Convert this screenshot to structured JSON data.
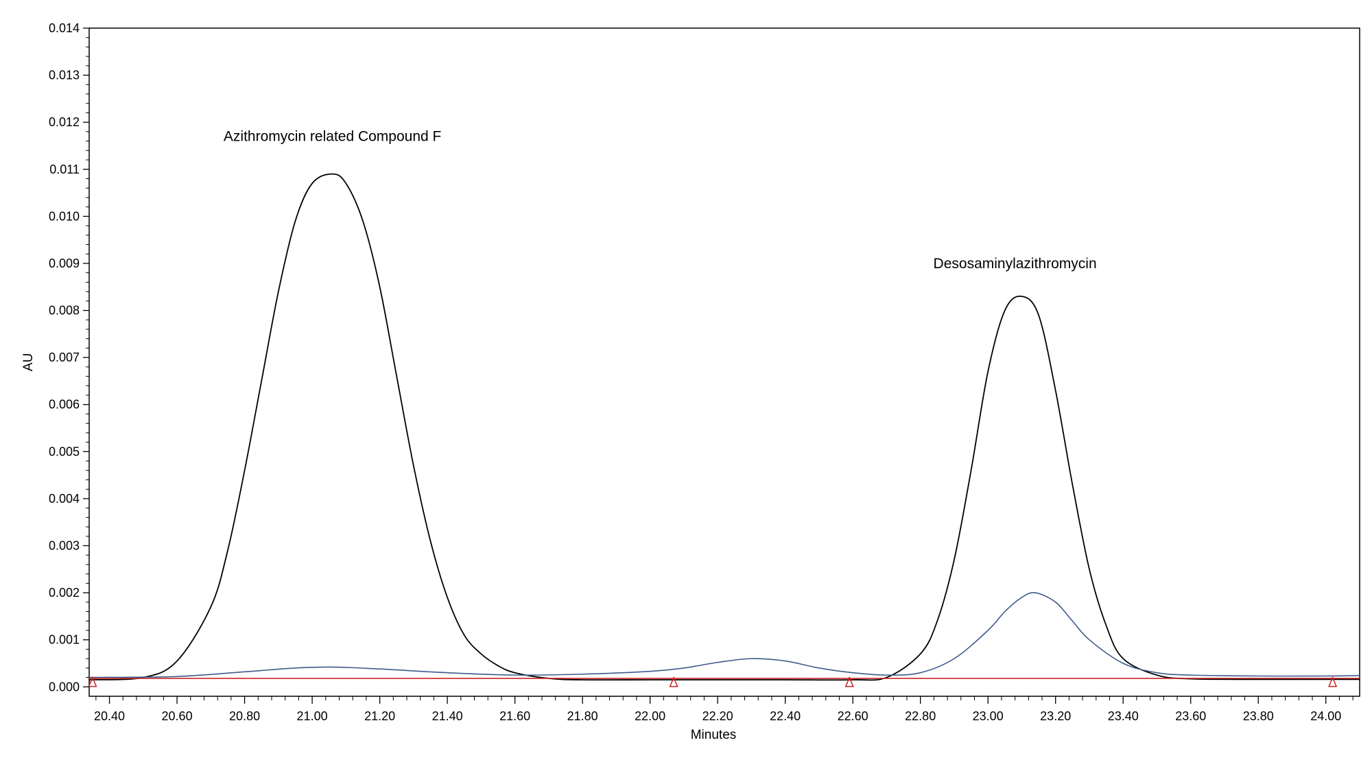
{
  "chart_data": {
    "type": "line",
    "xlabel": "Minutes",
    "ylabel": "AU",
    "xlim": [
      20.34,
      24.1
    ],
    "ylim": [
      -0.0002,
      0.014
    ],
    "x_ticks": [
      20.4,
      20.6,
      20.8,
      21.0,
      21.2,
      21.4,
      21.6,
      21.8,
      22.0,
      22.2,
      22.4,
      22.6,
      22.8,
      23.0,
      23.2,
      23.4,
      23.6,
      23.8,
      24.0
    ],
    "x_tick_labels": [
      "20.40",
      "20.60",
      "20.80",
      "21.00",
      "21.20",
      "21.40",
      "21.60",
      "21.80",
      "22.00",
      "22.20",
      "22.40",
      "22.60",
      "22.80",
      "23.00",
      "23.20",
      "23.40",
      "23.60",
      "23.80",
      "24.00"
    ],
    "y_ticks": [
      0.0,
      0.001,
      0.002,
      0.003,
      0.004,
      0.005,
      0.006,
      0.007,
      0.008,
      0.009,
      0.01,
      0.011,
      0.012,
      0.013,
      0.014
    ],
    "y_tick_labels": [
      "0.000",
      "0.001",
      "0.002",
      "0.003",
      "0.004",
      "0.005",
      "0.006",
      "0.007",
      "0.008",
      "0.009",
      "0.010",
      "0.011",
      "0.012",
      "0.013",
      "0.014"
    ],
    "grid": false,
    "legend": "none",
    "annotations": [
      {
        "text": "Azithromycin related Compound F",
        "x": 21.06,
        "y": 0.0116
      },
      {
        "text": "Desosaminylazithromycin",
        "x": 23.08,
        "y": 0.0089
      }
    ],
    "series": [
      {
        "color": "#000000",
        "x": [
          20.34,
          20.5,
          20.6,
          20.7,
          20.75,
          20.8,
          20.85,
          20.9,
          20.95,
          21.0,
          21.06,
          21.1,
          21.15,
          21.2,
          21.25,
          21.3,
          21.35,
          21.4,
          21.45,
          21.5,
          21.55,
          21.6,
          21.7,
          21.8,
          22.0,
          22.2,
          22.4,
          22.6,
          22.7,
          22.8,
          22.85,
          22.9,
          22.95,
          23.0,
          23.05,
          23.1,
          23.15,
          23.2,
          23.25,
          23.3,
          23.35,
          23.4,
          23.5,
          23.6,
          23.8,
          24.0,
          24.1
        ],
        "y": [
          0.00015,
          0.0002,
          0.00055,
          0.0017,
          0.0029,
          0.0046,
          0.0065,
          0.0084,
          0.0099,
          0.0107,
          0.0109,
          0.0107,
          0.0099,
          0.0085,
          0.0066,
          0.0047,
          0.0031,
          0.0019,
          0.0011,
          0.0007,
          0.00045,
          0.0003,
          0.00018,
          0.00015,
          0.00015,
          0.00015,
          0.00015,
          0.00015,
          0.0002,
          0.0007,
          0.0014,
          0.0027,
          0.0046,
          0.0067,
          0.008,
          0.0083,
          0.0079,
          0.0063,
          0.0043,
          0.0025,
          0.0013,
          0.0006,
          0.00025,
          0.00017,
          0.00016,
          0.00016,
          0.00016
        ]
      },
      {
        "color": "#3d5a8a",
        "x": [
          20.34,
          20.6,
          20.8,
          20.95,
          21.06,
          21.2,
          21.4,
          21.6,
          21.8,
          22.0,
          22.1,
          22.2,
          22.3,
          22.4,
          22.5,
          22.6,
          22.7,
          22.8,
          22.9,
          23.0,
          23.05,
          23.1,
          23.14,
          23.2,
          23.25,
          23.3,
          23.4,
          23.5,
          23.6,
          23.8,
          24.0,
          24.1
        ],
        "y": [
          0.0002,
          0.00022,
          0.00032,
          0.0004,
          0.00042,
          0.00038,
          0.0003,
          0.00025,
          0.00027,
          0.00033,
          0.0004,
          0.00052,
          0.0006,
          0.00055,
          0.0004,
          0.0003,
          0.00025,
          0.0003,
          0.0006,
          0.0012,
          0.0016,
          0.0019,
          0.002,
          0.0018,
          0.0014,
          0.001,
          0.0005,
          0.0003,
          0.00025,
          0.00023,
          0.00023,
          0.00024
        ]
      },
      {
        "color": "#cc2222",
        "x": [
          20.34,
          24.1
        ],
        "y": [
          0.00018,
          0.00018
        ]
      }
    ],
    "markers": {
      "color": "#cc2222",
      "shape": "triangle-open",
      "x": [
        20.35,
        22.07,
        22.59,
        24.02
      ],
      "y": [
        8e-05,
        8e-05,
        8e-05,
        8e-05
      ]
    }
  }
}
